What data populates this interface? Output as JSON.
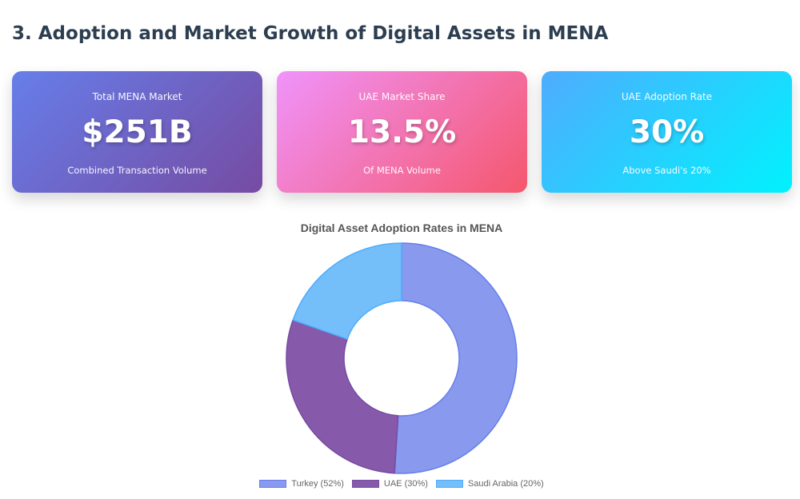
{
  "section": {
    "title": "3. Adoption and Market Growth of Digital Assets in MENA"
  },
  "cards": [
    {
      "label": "Total MENA Market",
      "value": "$251B",
      "sub": "Combined Transaction Volume"
    },
    {
      "label": "UAE Market Share",
      "value": "13.5%",
      "sub": "Of MENA Volume"
    },
    {
      "label": "UAE Adoption Rate",
      "value": "30%",
      "sub": "Above Saudi's 20%"
    }
  ],
  "card_gradients": [
    [
      "#667eea",
      "#764ba2"
    ],
    [
      "#f093fb",
      "#f5576c"
    ],
    [
      "#4facfe",
      "#00f2fe"
    ]
  ],
  "chart_data": {
    "type": "pie",
    "variant": "doughnut",
    "title": "Digital Asset Adoption Rates in MENA",
    "labels": [
      "Turkey (52%)",
      "UAE (30%)",
      "Saudi Arabia (20%)"
    ],
    "values": [
      52,
      30,
      20
    ],
    "colors": [
      "#8899ee",
      "#8659aa",
      "#74befa"
    ],
    "border_colors": [
      "#667eea",
      "#764ba2",
      "#4facfe"
    ],
    "legend_position": "bottom"
  }
}
